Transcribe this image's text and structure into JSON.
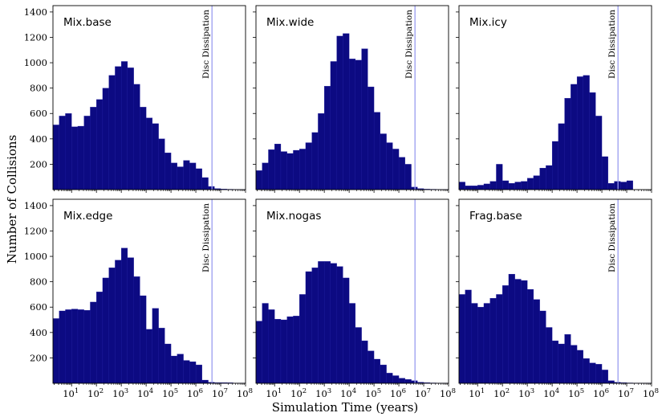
{
  "chart_data": {
    "type": "histogram-grid",
    "xlabel": "Simulation Time (years)",
    "ylabel": "Number of Collisions",
    "xscale": "log",
    "xlim_log10": [
      0.25,
      8
    ],
    "ylim": [
      0,
      1450
    ],
    "yticks": [
      200,
      400,
      600,
      800,
      1000,
      1200,
      1400
    ],
    "xtick_labels": [
      {
        "base": "10",
        "exp": "1"
      },
      {
        "base": "10",
        "exp": "2"
      },
      {
        "base": "10",
        "exp": "3"
      },
      {
        "base": "10",
        "exp": "4"
      },
      {
        "base": "10",
        "exp": "5"
      },
      {
        "base": "10",
        "exp": "6"
      },
      {
        "base": "10",
        "exp": "7"
      },
      {
        "base": "10",
        "exp": "8"
      }
    ],
    "bin_start_log10": 0.25,
    "bin_width_log10": 0.25,
    "bar_color": "#0c0a82",
    "line_color": "#9a9cf0",
    "disc_dissipation_log10": 6.65,
    "disc_label": "Disc Dissipation",
    "panels": [
      {
        "title": "Mix.base",
        "show_disc_label": true,
        "values": [
          510,
          580,
          600,
          495,
          500,
          580,
          650,
          710,
          800,
          900,
          970,
          1010,
          960,
          830,
          650,
          565,
          520,
          400,
          290,
          210,
          180,
          230,
          210,
          165,
          95,
          25,
          8,
          5,
          3,
          2,
          2
        ]
      },
      {
        "title": "Mix.wide",
        "show_disc_label": true,
        "values": [
          150,
          210,
          315,
          360,
          300,
          285,
          310,
          320,
          370,
          450,
          600,
          815,
          1010,
          1210,
          1230,
          1030,
          1020,
          1110,
          810,
          610,
          440,
          370,
          320,
          255,
          200,
          20,
          8,
          4,
          3,
          2,
          2
        ]
      },
      {
        "title": "Mix.icy",
        "show_disc_label": true,
        "values": [
          60,
          30,
          30,
          35,
          45,
          65,
          200,
          70,
          50,
          60,
          65,
          90,
          110,
          170,
          190,
          380,
          520,
          720,
          830,
          890,
          900,
          765,
          580,
          260,
          50,
          65,
          60,
          70,
          0,
          0,
          0
        ]
      },
      {
        "title": "Mix.edge",
        "show_disc_label": true,
        "values": [
          510,
          570,
          580,
          585,
          580,
          575,
          640,
          720,
          830,
          910,
          970,
          1065,
          990,
          840,
          690,
          425,
          590,
          435,
          310,
          215,
          230,
          180,
          170,
          145,
          25,
          8,
          5,
          5,
          4,
          2,
          2
        ]
      },
      {
        "title": "Mix.nogas",
        "show_disc_label": false,
        "values": [
          490,
          630,
          580,
          505,
          500,
          525,
          530,
          700,
          880,
          910,
          960,
          960,
          945,
          920,
          830,
          630,
          440,
          335,
          255,
          190,
          145,
          80,
          60,
          40,
          30,
          20,
          8,
          5,
          3,
          2,
          2
        ]
      },
      {
        "title": "Frag.base",
        "show_disc_label": true,
        "values": [
          700,
          735,
          630,
          600,
          630,
          670,
          700,
          770,
          860,
          820,
          810,
          740,
          660,
          570,
          440,
          335,
          310,
          385,
          300,
          260,
          195,
          160,
          150,
          105,
          20,
          8,
          5,
          3,
          2,
          2,
          2
        ]
      }
    ]
  }
}
